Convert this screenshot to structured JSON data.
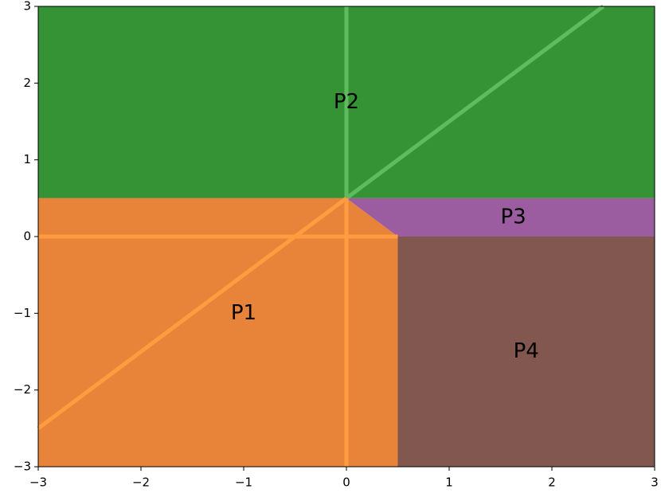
{
  "chart_data": {
    "type": "polygon",
    "xlim": [
      -3,
      3
    ],
    "ylim": [
      -3,
      3
    ],
    "xticks": [
      {
        "value": -3,
        "label": "−3"
      },
      {
        "value": -2,
        "label": "−2"
      },
      {
        "value": -1,
        "label": "−1"
      },
      0,
      1,
      2,
      3
    ],
    "yticks": [
      {
        "value": -3,
        "label": "−3"
      },
      {
        "value": -2,
        "label": "−2"
      },
      {
        "value": -1,
        "label": "−1"
      },
      0,
      1,
      2,
      3
    ],
    "regions": [
      {
        "name": "P2",
        "color": "#359335",
        "x": [
          -3,
          3,
          3,
          -3
        ],
        "y": [
          0.5,
          0.5,
          3,
          3
        ]
      },
      {
        "name": "P1",
        "color": "#e8833a",
        "x": [
          -3,
          0,
          0.5,
          0.5,
          -3
        ],
        "y": [
          0.5,
          0.5,
          0,
          -3,
          -3
        ]
      },
      {
        "name": "P3",
        "color": "#9b5ca0",
        "x": [
          0,
          3,
          3,
          0.5
        ],
        "y": [
          0.5,
          0.5,
          0,
          0
        ]
      },
      {
        "name": "P4",
        "color": "#82574f",
        "x": [
          0.5,
          3,
          3,
          0.5
        ],
        "y": [
          0,
          0,
          -3,
          -3
        ]
      }
    ],
    "shades": [
      {
        "color": "#df7a1f",
        "x": [
          -3,
          0,
          -3
        ],
        "y": [
          0.5,
          0.5,
          -1.5
        ]
      }
    ],
    "lines": [
      {
        "color": "#5ebc5e",
        "x": [
          0,
          0
        ],
        "y": [
          0.5,
          3
        ]
      },
      {
        "color": "#5ebc5e",
        "x": [
          0,
          2.5
        ],
        "y": [
          0.5,
          3
        ]
      },
      {
        "color": "#ff9c40",
        "x": [
          0,
          0
        ],
        "y": [
          -3,
          0.5
        ]
      },
      {
        "color": "#ff9c40",
        "x": [
          -3,
          0.5
        ],
        "y": [
          0,
          0
        ]
      },
      {
        "color": "#ff9c40",
        "x": [
          -3,
          0
        ],
        "y": [
          -2.5,
          0.5
        ]
      }
    ]
  }
}
